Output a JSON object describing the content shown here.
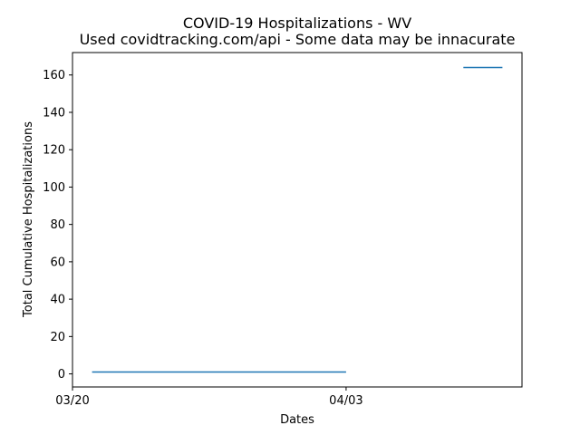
{
  "chart_data": {
    "type": "line",
    "title": "COVID-19 Hospitalizations - WV",
    "subtitle": "Used covidtracking.com/api - Some data may be innacurate",
    "xlabel": "Dates",
    "ylabel": "Total Cumulative Hospitalizations",
    "x_ticks": [
      "03/20",
      "04/03"
    ],
    "y_ticks": [
      0,
      20,
      40,
      60,
      80,
      100,
      120,
      140,
      160
    ],
    "xlim": [
      "2020-03-20",
      "2020-04-12"
    ],
    "ylim": [
      -7,
      172
    ],
    "grid": false,
    "series": [
      {
        "color": "#1f77b4",
        "segments": [
          {
            "points": [
              {
                "x": "2020-03-21",
                "y": 1
              },
              {
                "x": "2020-04-03",
                "y": 1
              }
            ]
          },
          {
            "points": [
              {
                "x": "2020-04-09",
                "y": 164
              },
              {
                "x": "2020-04-11",
                "y": 164
              }
            ]
          }
        ]
      }
    ]
  }
}
